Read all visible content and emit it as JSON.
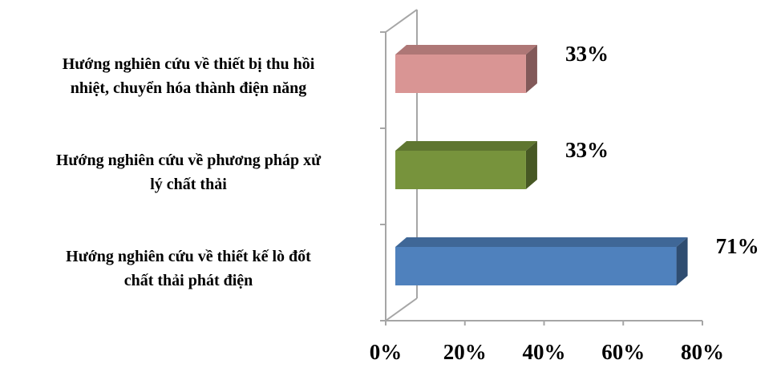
{
  "chart_data": {
    "type": "bar3d",
    "categories": [
      "Hướng nghiên cứu về thiết bị thu hồi\nnhiệt, chuyển hóa thành điện năng",
      "Hướng nghiên cứu về phương pháp xử\nlý chất thải",
      "Hướng nghiên cứu về thiết kế lò đốt\nchất thải phát điện"
    ],
    "values": [
      33,
      33,
      71
    ],
    "value_labels": [
      "33%",
      "33%",
      "71%"
    ],
    "colors": [
      "#d99594",
      "#77933c",
      "#4f81bd"
    ],
    "xlim": [
      0,
      80
    ],
    "xticks": [
      {
        "value": 0,
        "label": "0%"
      },
      {
        "value": 20,
        "label": "20%"
      },
      {
        "value": 40,
        "label": "40%"
      },
      {
        "value": 60,
        "label": "60%"
      },
      {
        "value": 80,
        "label": "80%"
      }
    ],
    "orientation": "horizontal"
  }
}
